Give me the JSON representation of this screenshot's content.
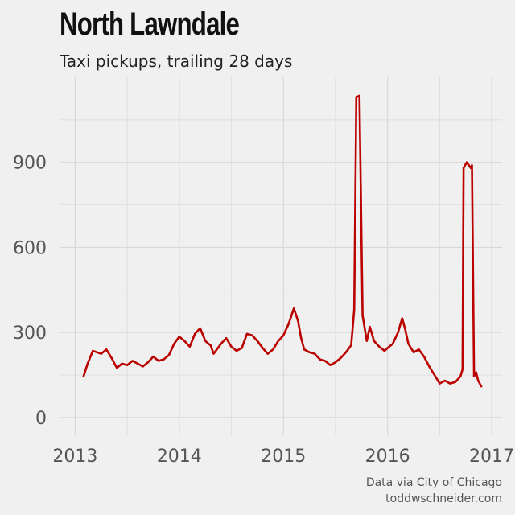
{
  "title": "North Lawndale",
  "subtitle": "Taxi pickups, trailing 28 days",
  "caption": {
    "line1": "Data via City of Chicago",
    "line2": "toddwschneider.com"
  },
  "colors": {
    "background": "#f0f0f0",
    "grid": "#d8d8d8",
    "series": "#bb0000"
  },
  "chart_data": {
    "type": "line",
    "title": "North Lawndale",
    "subtitle": "Taxi pickups, trailing 28 days",
    "xlabel": "",
    "ylabel": "",
    "xlim": [
      2012.85,
      2017.1
    ],
    "ylim": [
      -60,
      1200
    ],
    "x_ticks": [
      2013,
      2014,
      2015,
      2016,
      2017
    ],
    "y_ticks": [
      0,
      300,
      600,
      900
    ],
    "grid": true,
    "legend": "none",
    "series": [
      {
        "x": [
          2013.08,
          2013.12,
          2013.17,
          2013.21,
          2013.25,
          2013.3,
          2013.35,
          2013.4,
          2013.45,
          2013.5,
          2013.55,
          2013.6,
          2013.65,
          2013.7,
          2013.75,
          2013.8,
          2013.85,
          2013.9,
          2013.95,
          2014.0,
          2014.05,
          2014.1,
          2014.15,
          2014.2,
          2014.25,
          2014.28,
          2014.3,
          2014.33,
          2014.36,
          2014.4,
          2014.45,
          2014.5,
          2014.55,
          2014.6,
          2014.65,
          2014.7,
          2014.75,
          2014.8,
          2014.85,
          2014.9,
          2014.95,
          2015.0,
          2015.05,
          2015.1,
          2015.14,
          2015.17,
          2015.2,
          2015.25,
          2015.3,
          2015.35,
          2015.4,
          2015.45,
          2015.5,
          2015.55,
          2015.6,
          2015.65,
          2015.68,
          2015.7,
          2015.73,
          2015.76,
          2015.8,
          2015.83,
          2015.87,
          2015.92,
          2015.97,
          2016.0,
          2016.05,
          2016.1,
          2016.14,
          2016.17,
          2016.2,
          2016.25,
          2016.3,
          2016.35,
          2016.4,
          2016.45,
          2016.5,
          2016.55,
          2016.6,
          2016.65,
          2016.7,
          2016.72,
          2016.73,
          2016.76,
          2016.8,
          2016.81,
          2016.83,
          2016.85,
          2016.87,
          2016.9
        ],
        "y": [
          145,
          190,
          235,
          230,
          225,
          240,
          210,
          175,
          190,
          185,
          200,
          190,
          180,
          195,
          215,
          200,
          205,
          220,
          260,
          285,
          270,
          250,
          295,
          315,
          270,
          260,
          255,
          225,
          240,
          260,
          280,
          250,
          235,
          245,
          295,
          290,
          270,
          245,
          225,
          240,
          270,
          290,
          330,
          385,
          340,
          280,
          240,
          230,
          225,
          205,
          200,
          185,
          195,
          210,
          230,
          255,
          380,
          1130,
          1135,
          360,
          270,
          320,
          270,
          250,
          235,
          245,
          260,
          300,
          350,
          310,
          260,
          230,
          240,
          215,
          180,
          150,
          120,
          130,
          120,
          125,
          145,
          170,
          880,
          900,
          880,
          890,
          145,
          160,
          130,
          110
        ]
      }
    ]
  }
}
